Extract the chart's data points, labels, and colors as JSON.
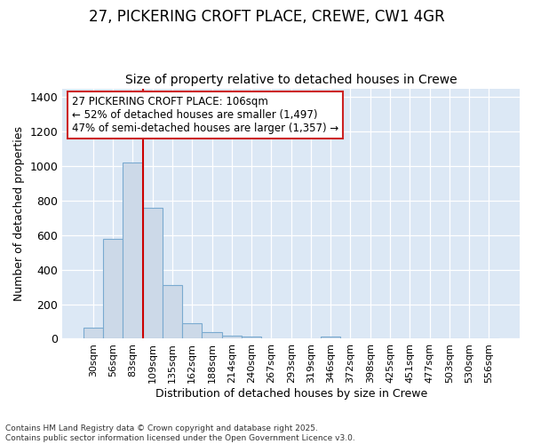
{
  "title_line1": "27, PICKERING CROFT PLACE, CREWE, CW1 4GR",
  "title_line2": "Size of property relative to detached houses in Crewe",
  "xlabel": "Distribution of detached houses by size in Crewe",
  "ylabel": "Number of detached properties",
  "bar_color": "#ccd9e8",
  "bar_edge_color": "#7aaad0",
  "bin_labels": [
    "30sqm",
    "56sqm",
    "83sqm",
    "109sqm",
    "135sqm",
    "162sqm",
    "188sqm",
    "214sqm",
    "240sqm",
    "267sqm",
    "293sqm",
    "319sqm",
    "346sqm",
    "372sqm",
    "398sqm",
    "425sqm",
    "451sqm",
    "477sqm",
    "503sqm",
    "530sqm",
    "556sqm"
  ],
  "bar_heights": [
    65,
    580,
    1020,
    760,
    310,
    90,
    40,
    20,
    12,
    0,
    0,
    0,
    14,
    0,
    0,
    0,
    0,
    0,
    0,
    0,
    0
  ],
  "ylim": [
    0,
    1450
  ],
  "yticks": [
    0,
    200,
    400,
    600,
    800,
    1000,
    1200,
    1400
  ],
  "vline_x": 2.5,
  "vline_color": "#cc0000",
  "annotation_text": "27 PICKERING CROFT PLACE: 106sqm\n← 52% of detached houses are smaller (1,497)\n47% of semi-detached houses are larger (1,357) →",
  "bg_color": "#dce8f5",
  "footer_text": "Contains HM Land Registry data © Crown copyright and database right 2025.\nContains public sector information licensed under the Open Government Licence v3.0.",
  "title_fontsize": 12,
  "subtitle_fontsize": 10,
  "annotation_fontsize": 8.5
}
